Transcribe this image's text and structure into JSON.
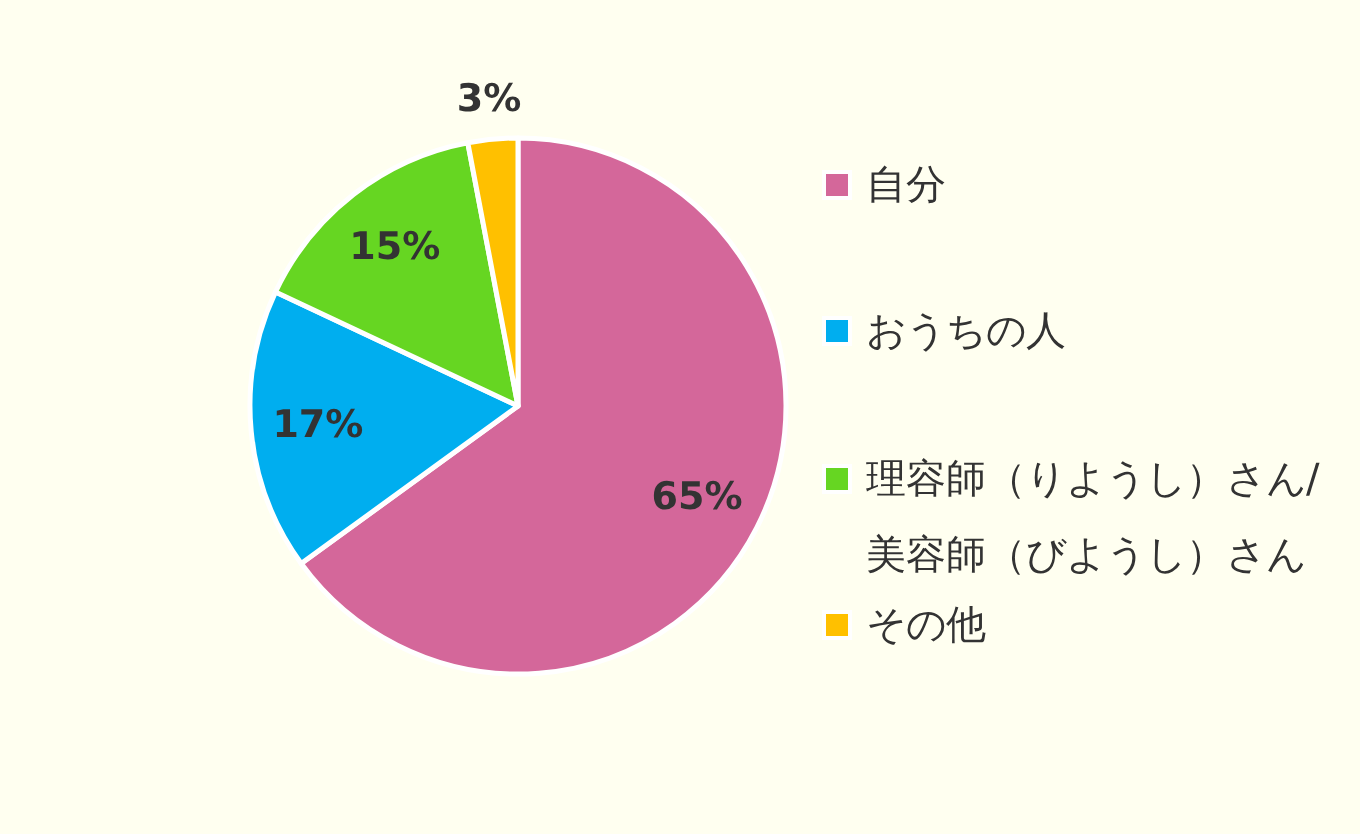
{
  "chart_data": {
    "type": "pie",
    "categories": [
      "自分",
      "おうちの人",
      "理容師（りようし）さん/美容師（びようし）さん",
      "その他"
    ],
    "values": [
      65,
      17,
      15,
      3
    ],
    "colors": [
      "#d4679a",
      "#00aeef",
      "#66d622",
      "#ffc000"
    ],
    "value_labels": [
      "65%",
      "17%",
      "15%",
      "3%"
    ],
    "legend": "right"
  }
}
